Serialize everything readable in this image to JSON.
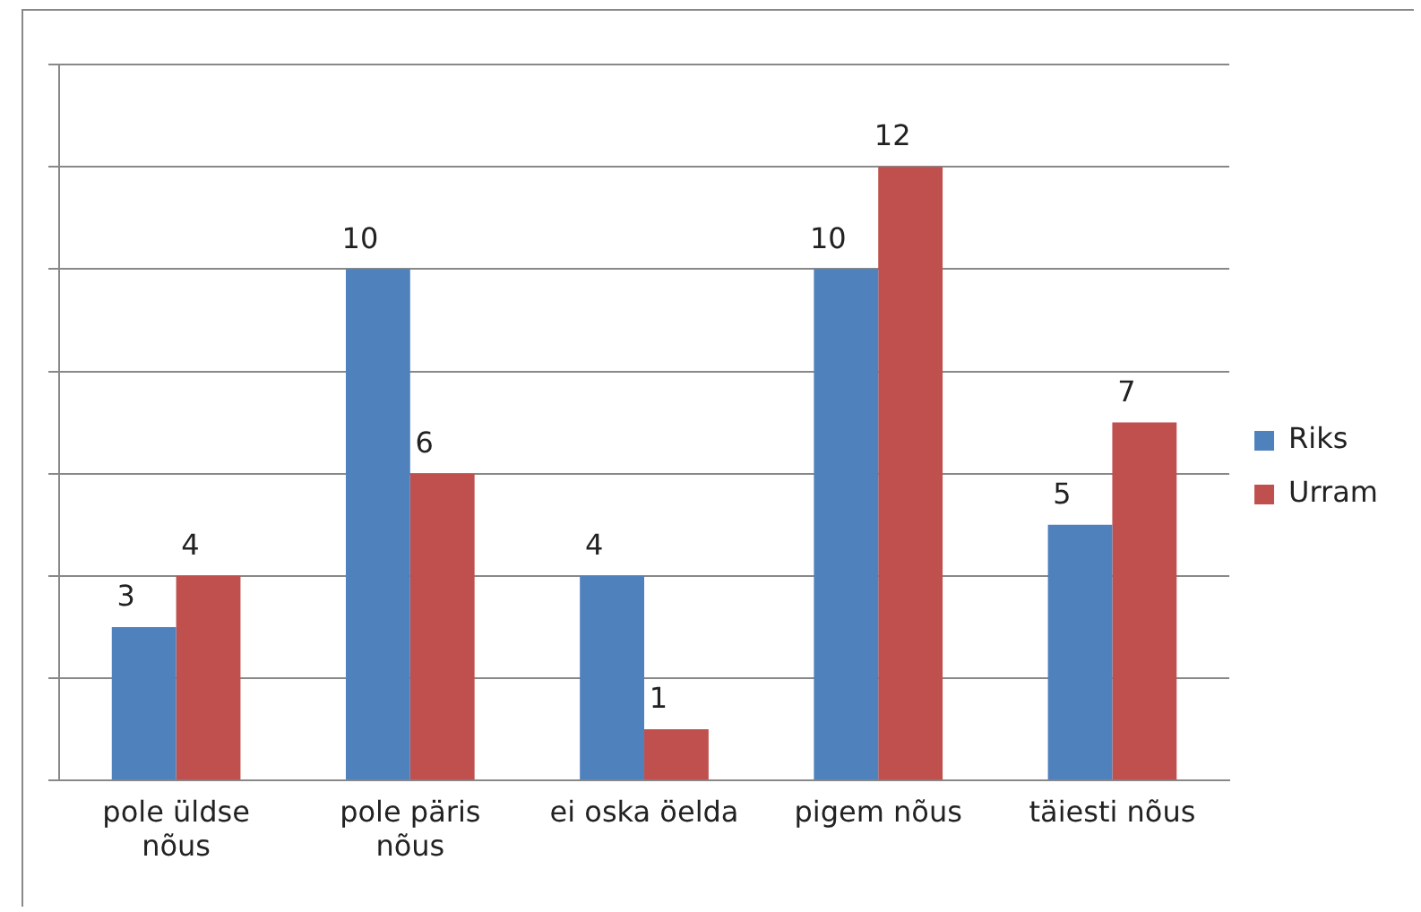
{
  "chart_data": {
    "type": "bar",
    "categories": [
      "pole üldse nõus",
      "pole päris nõus",
      "ei oska öelda",
      "pigem nõus",
      "täiesti nõus"
    ],
    "series": [
      {
        "name": "Riks",
        "color": "#4f81bd",
        "values": [
          3,
          10,
          4,
          10,
          5
        ]
      },
      {
        "name": "Urram",
        "color": "#c0504d",
        "values": [
          4,
          6,
          1,
          12,
          7
        ]
      }
    ],
    "grid": "y",
    "legend": "right",
    "tick_labels": "x",
    "data_labels": true
  }
}
